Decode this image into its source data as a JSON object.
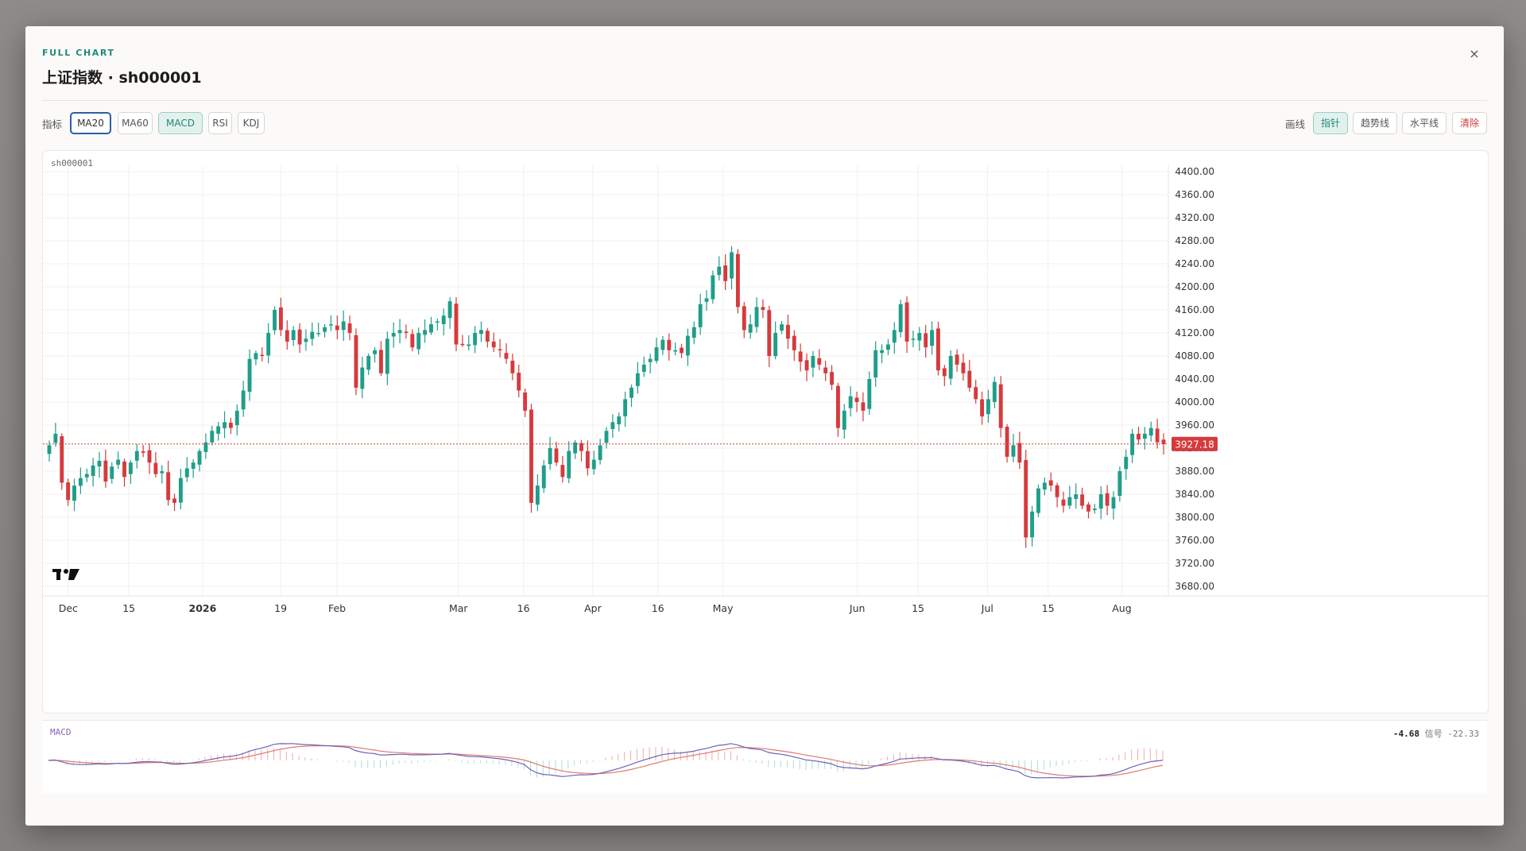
{
  "eyebrow": "FULL CHART",
  "title": "上证指数 · sh000001",
  "close_label": "×",
  "toolbar": {
    "indicator_label": "指标",
    "indicators": [
      "MA20",
      "MA60",
      "MACD",
      "RSI",
      "KDJ"
    ],
    "draw_label": "画线",
    "tools": [
      "指针",
      "趋势线",
      "水平线"
    ],
    "clear_label": "清除"
  },
  "chart_data": {
    "type": "candlestick",
    "symbol_label": "sh000001",
    "ylim": [
      3660,
      4400
    ],
    "y_ticks": [
      4400,
      4360,
      4320,
      4280,
      4240,
      4200,
      4160,
      4120,
      4080,
      4040,
      4000,
      3960,
      3920,
      3880,
      3840,
      3800,
      3760,
      3720,
      3680
    ],
    "x_ticks": [
      {
        "label": "Dec",
        "date": "2025-12-01"
      },
      {
        "label": "15",
        "date": "2025-12-15"
      },
      {
        "label": "2026",
        "date": "2026-01-01",
        "bold": true
      },
      {
        "label": "19",
        "date": "2026-01-19"
      },
      {
        "label": "Feb",
        "date": "2026-02-01"
      },
      {
        "label": "Mar",
        "date": "2026-03-01"
      },
      {
        "label": "16",
        "date": "2026-03-16"
      },
      {
        "label": "Apr",
        "date": "2026-04-01"
      },
      {
        "label": "16",
        "date": "2026-04-16"
      },
      {
        "label": "May",
        "date": "2026-05-01"
      },
      {
        "label": "Jun",
        "date": "2026-06-01"
      },
      {
        "label": "15",
        "date": "2026-06-15"
      },
      {
        "label": "Jul",
        "date": "2026-07-01"
      },
      {
        "label": "15",
        "date": "2026-07-15"
      },
      {
        "label": "Aug",
        "date": "2026-08-01"
      }
    ],
    "last_price": "3927.18",
    "grid": true,
    "up_color": "#1f9e89",
    "down_color": "#d63a3d",
    "closes": [
      3925,
      3945,
      3860,
      3830,
      3855,
      3868,
      3875,
      3890,
      3898,
      3862,
      3888,
      3900,
      3870,
      3895,
      3915,
      3912,
      3895,
      3875,
      3880,
      3830,
      3825,
      3868,
      3885,
      3895,
      3915,
      3930,
      3950,
      3958,
      3965,
      3955,
      3985,
      4020,
      4075,
      4085,
      4080,
      4120,
      4160,
      4125,
      4105,
      4125,
      4100,
      4110,
      4122,
      4120,
      4130,
      4135,
      4125,
      4140,
      4120,
      4025,
      4060,
      4080,
      4090,
      4050,
      4110,
      4120,
      4125,
      4120,
      4095,
      4120,
      4125,
      4135,
      4140,
      4150,
      4175,
      4100,
      4100,
      4100,
      4120,
      4125,
      4105,
      4095,
      4090,
      4075,
      4050,
      4020,
      3985,
      3825,
      3855,
      3890,
      3920,
      3895,
      3870,
      3915,
      3930,
      3915,
      3885,
      3900,
      3925,
      3950,
      3965,
      3975,
      4005,
      4025,
      4050,
      4065,
      4075,
      4095,
      4108,
      4090,
      4090,
      4085,
      4115,
      4130,
      4170,
      4180,
      4220,
      4235,
      4210,
      4260,
      4165,
      4125,
      4135,
      4165,
      4160,
      4080,
      4120,
      4135,
      4110,
      4090,
      4070,
      4055,
      4080,
      4065,
      4050,
      4030,
      3955,
      3985,
      4010,
      4000,
      3985,
      4040,
      4090,
      4090,
      4100,
      4125,
      4170,
      4105,
      4110,
      4120,
      4095,
      4125,
      4055,
      4045,
      4080,
      4065,
      4050,
      4025,
      4005,
      3975,
      4005,
      4035,
      3955,
      3905,
      3925,
      3895,
      3765,
      3810,
      3850,
      3860,
      3855,
      3835,
      3820,
      3835,
      3840,
      3820,
      3810,
      3815,
      3840,
      3820,
      3835,
      3880,
      3905,
      3945,
      3935,
      3945,
      3955,
      3930,
      3927.18
    ],
    "macd": {
      "name": "MACD",
      "value": "-4.68",
      "signal_label": "信号",
      "signal_value": "-22.33"
    }
  }
}
